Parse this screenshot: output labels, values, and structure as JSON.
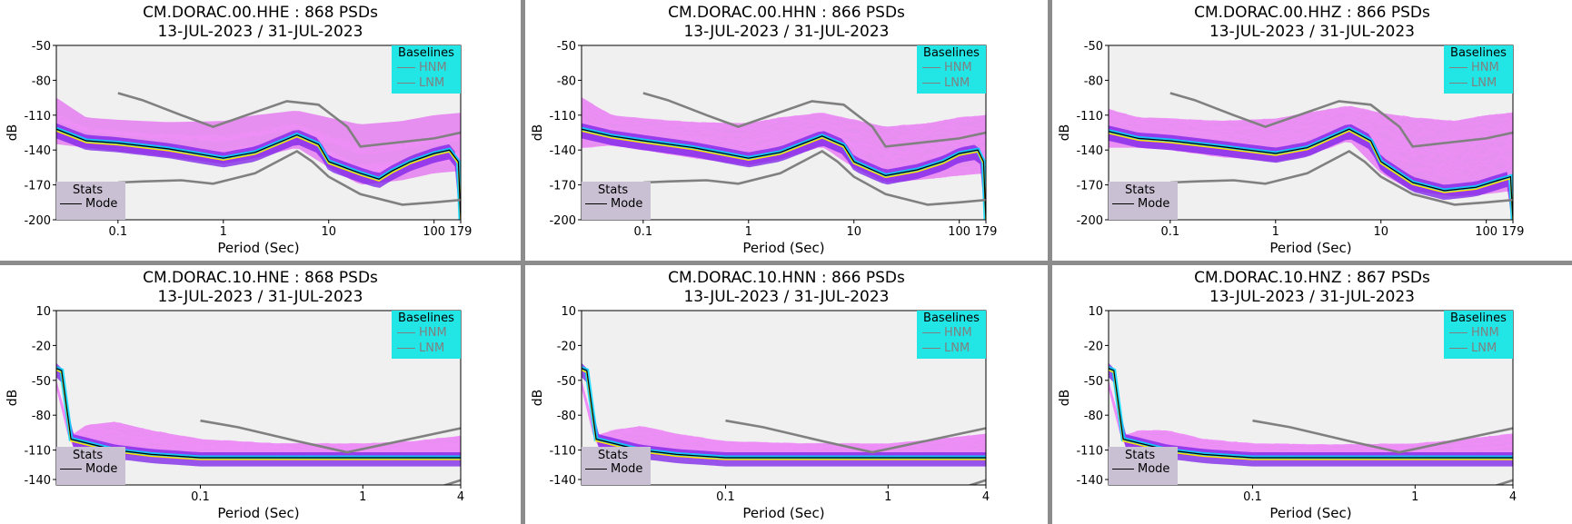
{
  "chart_data": [
    {
      "type": "heatmap",
      "station": "CM.DORAC.00.HHE",
      "title": "CM.DORAC.00.HHE : 868 PSDs",
      "subtitle": "13-JUL-2023 / 31-JUL-2023",
      "xlabel": "Period (Sec)",
      "ylabel": "dB",
      "x_scale": "log",
      "xlim": [
        0.026,
        179
      ],
      "ylim": [
        -200,
        -50
      ],
      "yticks": [
        "-50",
        "-80",
        "-110",
        "-140",
        "-170",
        "-200"
      ],
      "xticks": [
        {
          "v": 0.1,
          "label": "0.1"
        },
        {
          "v": 1,
          "label": "1"
        },
        {
          "v": 10,
          "label": "10"
        },
        {
          "v": 100,
          "label": "100"
        },
        {
          "v": 179,
          "label": "179"
        }
      ],
      "band_top": [
        [
          0.026,
          -95
        ],
        [
          0.05,
          -112
        ],
        [
          0.1,
          -114
        ],
        [
          0.3,
          -116
        ],
        [
          1,
          -115
        ],
        [
          2,
          -110
        ],
        [
          5,
          -106
        ],
        [
          10,
          -112
        ],
        [
          20,
          -118
        ],
        [
          50,
          -115
        ],
        [
          100,
          -110
        ],
        [
          179,
          -108
        ]
      ],
      "band_bottom": [
        [
          0.026,
          -135
        ],
        [
          0.05,
          -138
        ],
        [
          0.1,
          -141
        ],
        [
          0.3,
          -146
        ],
        [
          1,
          -152
        ],
        [
          2,
          -147
        ],
        [
          5,
          -138
        ],
        [
          10,
          -155
        ],
        [
          20,
          -170
        ],
        [
          50,
          -166
        ],
        [
          100,
          -160
        ],
        [
          179,
          -158
        ]
      ],
      "mode": [
        [
          0.026,
          -122
        ],
        [
          0.05,
          -132
        ],
        [
          0.1,
          -134
        ],
        [
          0.3,
          -139
        ],
        [
          1,
          -147
        ],
        [
          2,
          -142
        ],
        [
          5,
          -127
        ],
        [
          8,
          -135
        ],
        [
          10,
          -150
        ],
        [
          20,
          -160
        ],
        [
          30,
          -165
        ],
        [
          40,
          -158
        ],
        [
          60,
          -150
        ],
        [
          100,
          -143
        ],
        [
          140,
          -140
        ],
        [
          170,
          -150
        ],
        [
          179,
          -200
        ]
      ],
      "colors": {
        "background": "#f0f0f0",
        "band": "#e040f0",
        "core": "#7a1fe8",
        "baseline": "#808080"
      }
    },
    {
      "type": "heatmap",
      "station": "CM.DORAC.00.HHN",
      "title": "CM.DORAC.00.HHN : 866 PSDs",
      "subtitle": "13-JUL-2023 / 31-JUL-2023",
      "xlabel": "Period (Sec)",
      "ylabel": "dB",
      "x_scale": "log",
      "xlim": [
        0.026,
        179
      ],
      "ylim": [
        -200,
        -50
      ],
      "yticks": [
        "-50",
        "-80",
        "-110",
        "-140",
        "-170",
        "-200"
      ],
      "xticks": [
        {
          "v": 0.1,
          "label": "0.1"
        },
        {
          "v": 1,
          "label": "1"
        },
        {
          "v": 10,
          "label": "10"
        },
        {
          "v": 100,
          "label": "100"
        },
        {
          "v": 179,
          "label": "179"
        }
      ],
      "band_top": [
        [
          0.026,
          -95
        ],
        [
          0.05,
          -110
        ],
        [
          0.1,
          -113
        ],
        [
          0.3,
          -116
        ],
        [
          1,
          -117
        ],
        [
          2,
          -112
        ],
        [
          5,
          -108
        ],
        [
          10,
          -114
        ],
        [
          20,
          -120
        ],
        [
          50,
          -117
        ],
        [
          100,
          -112
        ],
        [
          179,
          -110
        ]
      ],
      "band_bottom": [
        [
          0.026,
          -138
        ],
        [
          0.05,
          -136
        ],
        [
          0.1,
          -140
        ],
        [
          0.3,
          -147
        ],
        [
          1,
          -153
        ],
        [
          2,
          -148
        ],
        [
          5,
          -137
        ],
        [
          10,
          -155
        ],
        [
          20,
          -168
        ],
        [
          50,
          -165
        ],
        [
          100,
          -162
        ],
        [
          179,
          -160
        ]
      ],
      "mode": [
        [
          0.026,
          -122
        ],
        [
          0.05,
          -128
        ],
        [
          0.1,
          -132
        ],
        [
          0.3,
          -138
        ],
        [
          1,
          -147
        ],
        [
          2,
          -142
        ],
        [
          5,
          -128
        ],
        [
          8,
          -136
        ],
        [
          10,
          -150
        ],
        [
          20,
          -162
        ],
        [
          40,
          -157
        ],
        [
          70,
          -150
        ],
        [
          100,
          -143
        ],
        [
          150,
          -140
        ],
        [
          170,
          -150
        ],
        [
          179,
          -200
        ]
      ],
      "colors": {
        "background": "#f0f0f0",
        "band": "#e040f0",
        "core": "#7a1fe8",
        "baseline": "#808080"
      }
    },
    {
      "type": "heatmap",
      "station": "CM.DORAC.00.HHZ",
      "title": "CM.DORAC.00.HHZ : 866 PSDs",
      "subtitle": "13-JUL-2023 / 31-JUL-2023",
      "xlabel": "Period (Sec)",
      "ylabel": "dB",
      "x_scale": "log",
      "xlim": [
        0.026,
        179
      ],
      "ylim": [
        -200,
        -50
      ],
      "yticks": [
        "-50",
        "-80",
        "-110",
        "-140",
        "-170",
        "-200"
      ],
      "xticks": [
        {
          "v": 0.1,
          "label": "0.1"
        },
        {
          "v": 1,
          "label": "1"
        },
        {
          "v": 10,
          "label": "10"
        },
        {
          "v": 100,
          "label": "100"
        },
        {
          "v": 179,
          "label": "179"
        }
      ],
      "band_top": [
        [
          0.026,
          -105
        ],
        [
          0.05,
          -112
        ],
        [
          0.1,
          -113
        ],
        [
          0.3,
          -115
        ],
        [
          1,
          -113
        ],
        [
          2,
          -108
        ],
        [
          5,
          -102
        ],
        [
          10,
          -108
        ],
        [
          20,
          -112
        ],
        [
          50,
          -115
        ],
        [
          100,
          -110
        ],
        [
          179,
          -108
        ]
      ],
      "band_bottom": [
        [
          0.026,
          -138
        ],
        [
          0.05,
          -138
        ],
        [
          0.1,
          -140
        ],
        [
          0.3,
          -146
        ],
        [
          1,
          -150
        ],
        [
          2,
          -145
        ],
        [
          5,
          -132
        ],
        [
          10,
          -160
        ],
        [
          20,
          -175
        ],
        [
          50,
          -180
        ],
        [
          100,
          -178
        ],
        [
          179,
          -175
        ]
      ],
      "mode": [
        [
          0.026,
          -124
        ],
        [
          0.05,
          -130
        ],
        [
          0.1,
          -132
        ],
        [
          0.3,
          -137
        ],
        [
          1,
          -143
        ],
        [
          2,
          -138
        ],
        [
          5,
          -122
        ],
        [
          8,
          -132
        ],
        [
          10,
          -150
        ],
        [
          20,
          -168
        ],
        [
          40,
          -175
        ],
        [
          80,
          -172
        ],
        [
          130,
          -166
        ],
        [
          170,
          -163
        ],
        [
          179,
          -200
        ]
      ],
      "colors": {
        "background": "#f0f0f0",
        "band": "#e040f0",
        "core": "#7a1fe8",
        "baseline": "#808080"
      }
    },
    {
      "type": "heatmap",
      "station": "CM.DORAC.10.HNE",
      "title": "CM.DORAC.10.HNE : 868 PSDs",
      "subtitle": "13-JUL-2023 / 31-JUL-2023",
      "xlabel": "Period (Sec)",
      "ylabel": "dB",
      "x_scale": "log",
      "xlim": [
        0.013,
        4
      ],
      "ylim": [
        -150,
        10
      ],
      "yticks": [
        "10",
        "-20",
        "-50",
        "-80",
        "-110",
        "-140"
      ],
      "xticks": [
        {
          "v": 0.1,
          "label": "0.1"
        },
        {
          "v": 1,
          "label": "1"
        },
        {
          "v": 4,
          "label": "4"
        }
      ],
      "band_top": [
        [
          0.013,
          -55
        ],
        [
          0.016,
          -105
        ],
        [
          0.02,
          -95
        ],
        [
          0.03,
          -92
        ],
        [
          0.05,
          -100
        ],
        [
          0.1,
          -108
        ],
        [
          0.3,
          -112
        ],
        [
          1,
          -112
        ],
        [
          2,
          -110
        ],
        [
          4,
          -105
        ]
      ],
      "band_bottom": [
        [
          0.013,
          -60
        ],
        [
          0.016,
          -115
        ],
        [
          0.03,
          -122
        ],
        [
          0.1,
          -126
        ],
        [
          1,
          -127
        ],
        [
          4,
          -127
        ]
      ],
      "mode": [
        [
          0.013,
          -43
        ],
        [
          0.014,
          -45
        ],
        [
          0.016,
          -108
        ],
        [
          0.03,
          -118
        ],
        [
          0.05,
          -122
        ],
        [
          0.1,
          -125
        ],
        [
          1,
          -125
        ],
        [
          4,
          -125
        ]
      ],
      "colors": {
        "background": "#f0f0f0",
        "band": "#e040f0",
        "core": "#7a1fe8",
        "baseline": "#808080"
      }
    },
    {
      "type": "heatmap",
      "station": "CM.DORAC.10.HNN",
      "title": "CM.DORAC.10.HNN : 866 PSDs",
      "subtitle": "13-JUL-2023 / 31-JUL-2023",
      "xlabel": "Period (Sec)",
      "ylabel": "dB",
      "x_scale": "log",
      "xlim": [
        0.013,
        4
      ],
      "ylim": [
        -150,
        10
      ],
      "yticks": [
        "10",
        "-20",
        "-50",
        "-80",
        "-110",
        "-140"
      ],
      "xticks": [
        {
          "v": 0.1,
          "label": "0.1"
        },
        {
          "v": 1,
          "label": "1"
        },
        {
          "v": 4,
          "label": "4"
        }
      ],
      "band_top": [
        [
          0.013,
          -55
        ],
        [
          0.016,
          -105
        ],
        [
          0.02,
          -100
        ],
        [
          0.03,
          -96
        ],
        [
          0.05,
          -103
        ],
        [
          0.1,
          -110
        ],
        [
          0.3,
          -112
        ],
        [
          1,
          -112
        ],
        [
          2,
          -108
        ],
        [
          4,
          -103
        ]
      ],
      "band_bottom": [
        [
          0.013,
          -60
        ],
        [
          0.016,
          -115
        ],
        [
          0.03,
          -122
        ],
        [
          0.1,
          -126
        ],
        [
          1,
          -127
        ],
        [
          4,
          -127
        ]
      ],
      "mode": [
        [
          0.013,
          -43
        ],
        [
          0.014,
          -45
        ],
        [
          0.016,
          -108
        ],
        [
          0.03,
          -118
        ],
        [
          0.05,
          -122
        ],
        [
          0.1,
          -125
        ],
        [
          1,
          -125
        ],
        [
          4,
          -125
        ]
      ],
      "colors": {
        "background": "#f0f0f0",
        "band": "#e040f0",
        "core": "#7a1fe8",
        "baseline": "#808080"
      }
    },
    {
      "type": "heatmap",
      "station": "CM.DORAC.10.HNZ",
      "title": "CM.DORAC.10.HNZ : 867 PSDs",
      "subtitle": "13-JUL-2023 / 31-JUL-2023",
      "xlabel": "Period (Sec)",
      "ylabel": "dB",
      "x_scale": "log",
      "xlim": [
        0.013,
        4
      ],
      "ylim": [
        -150,
        10
      ],
      "yticks": [
        "10",
        "-20",
        "-50",
        "-80",
        "-110",
        "-140"
      ],
      "xticks": [
        {
          "v": 0.1,
          "label": "0.1"
        },
        {
          "v": 1,
          "label": "1"
        },
        {
          "v": 4,
          "label": "4"
        }
      ],
      "band_top": [
        [
          0.013,
          -55
        ],
        [
          0.016,
          -105
        ],
        [
          0.02,
          -100
        ],
        [
          0.03,
          -100
        ],
        [
          0.05,
          -108
        ],
        [
          0.1,
          -112
        ],
        [
          0.3,
          -113
        ],
        [
          1,
          -112
        ],
        [
          2,
          -108
        ],
        [
          4,
          -103
        ]
      ],
      "band_bottom": [
        [
          0.013,
          -60
        ],
        [
          0.016,
          -115
        ],
        [
          0.03,
          -122
        ],
        [
          0.1,
          -126
        ],
        [
          1,
          -127
        ],
        [
          4,
          -127
        ]
      ],
      "mode": [
        [
          0.013,
          -43
        ],
        [
          0.014,
          -45
        ],
        [
          0.016,
          -108
        ],
        [
          0.03,
          -118
        ],
        [
          0.05,
          -122
        ],
        [
          0.1,
          -125
        ],
        [
          1,
          -125
        ],
        [
          4,
          -125
        ]
      ],
      "colors": {
        "background": "#f0f0f0",
        "band": "#e040f0",
        "core": "#7a1fe8",
        "baseline": "#808080"
      }
    }
  ],
  "baselines_legend": {
    "title": "Baselines",
    "items": [
      "HNM",
      "LNM"
    ]
  },
  "stats_legend": {
    "title": "Stats",
    "items": [
      "Mode"
    ]
  },
  "nhnm_db": [
    [
      0.1,
      -91
    ],
    [
      0.17,
      -97
    ],
    [
      0.4,
      -110
    ],
    [
      0.8,
      -120
    ],
    [
      4,
      -98
    ],
    [
      8,
      -101
    ],
    [
      15,
      -120
    ],
    [
      20,
      -137
    ],
    [
      100,
      -130
    ],
    [
      179,
      -125
    ]
  ],
  "nlnm_db": [
    [
      0.1,
      -168
    ],
    [
      0.17,
      -167
    ],
    [
      0.4,
      -166
    ],
    [
      0.8,
      -169
    ],
    [
      2,
      -160
    ],
    [
      5,
      -141
    ],
    [
      7,
      -150
    ],
    [
      10,
      -163
    ],
    [
      20,
      -178
    ],
    [
      50,
      -187
    ],
    [
      100,
      -185
    ],
    [
      179,
      -183
    ]
  ]
}
